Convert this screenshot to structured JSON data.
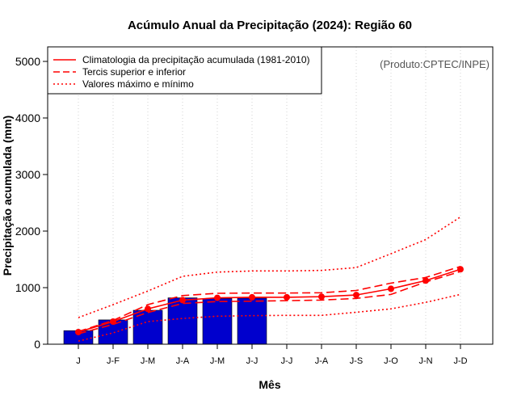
{
  "chart_data": {
    "type": "bar",
    "title": "Acúmulo Anual da Precipitação (2024): Região 60",
    "xlabel": "Mês",
    "ylabel": "Precipitação acumulada (mm)",
    "credit": "(Produto:CPTEC/INPE)",
    "ylim": [
      0,
      5000
    ],
    "yticks": [
      0,
      1000,
      2000,
      3000,
      4000,
      5000
    ],
    "ytick_labels": [
      "0",
      "1000",
      "2000",
      "3000",
      "4000",
      "5000"
    ],
    "grid": true,
    "categories": [
      "J",
      "J-F",
      "J-M",
      "J-A",
      "J-M",
      "J-J",
      "J-J",
      "J-A",
      "J-S",
      "J-O",
      "J-N",
      "J-D"
    ],
    "bars": {
      "name": "Precipitação acumulada 2024",
      "color": "#0000cd",
      "values": [
        240,
        430,
        600,
        820,
        810,
        815
      ]
    },
    "legend": {
      "position": "top-left",
      "entries": [
        {
          "label": "Climatologia da precipitação acumulada (1981-2010)",
          "style": "solid",
          "color": "#ff0000"
        },
        {
          "label": "Tercis superior e inferior",
          "style": "dashed",
          "color": "#ff0000"
        },
        {
          "label": "Valores máximo e mínimo",
          "style": "dotted",
          "color": "#ff0000"
        }
      ]
    },
    "series": [
      {
        "name": "Climatologia da precipitação acumulada (1981-2010)",
        "style": "solid",
        "markers": true,
        "color": "#ff0000",
        "values": [
          215,
          400,
          625,
          780,
          820,
          830,
          830,
          840,
          870,
          980,
          1125,
          1325
        ]
      },
      {
        "name": "Tercil superior",
        "style": "dashed",
        "color": "#ff0000",
        "values": [
          225,
          420,
          700,
          860,
          900,
          905,
          905,
          910,
          950,
          1080,
          1180,
          1375
        ]
      },
      {
        "name": "Tercil inferior",
        "style": "dashed",
        "color": "#ff0000",
        "values": [
          185,
          350,
          560,
          720,
          755,
          760,
          770,
          780,
          810,
          880,
          1100,
          1285
        ]
      },
      {
        "name": "Valor máximo",
        "style": "dotted",
        "color": "#ff0000",
        "values": [
          470,
          700,
          940,
          1200,
          1275,
          1295,
          1295,
          1305,
          1355,
          1600,
          1850,
          2250
        ]
      },
      {
        "name": "Valor mínimo",
        "style": "dotted",
        "color": "#ff0000",
        "values": [
          55,
          200,
          400,
          455,
          495,
          505,
          510,
          510,
          565,
          625,
          740,
          880
        ]
      }
    ]
  }
}
